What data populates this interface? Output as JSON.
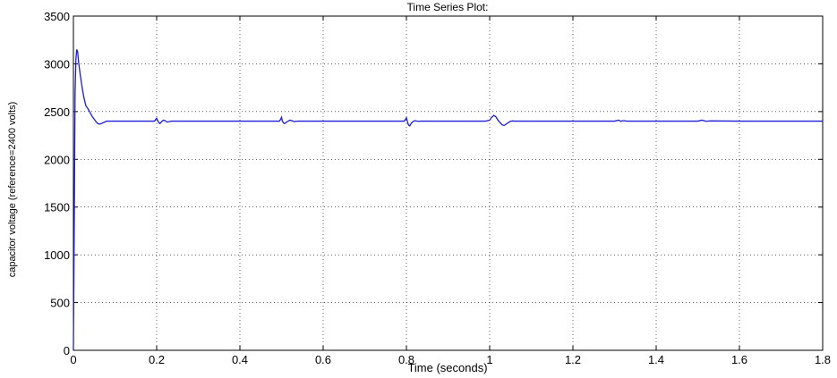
{
  "chart_data": {
    "type": "line",
    "title": "Time Series Plot:",
    "xlabel": "Time (seconds)",
    "ylabel": "capacitor voltage (reference=2400 volts)",
    "xlim": [
      0,
      1.8
    ],
    "ylim": [
      0,
      3500
    ],
    "xticks": [
      0,
      0.2,
      0.4,
      0.6,
      0.8,
      1,
      1.2,
      1.4,
      1.6,
      1.8
    ],
    "xtick_labels": [
      "0",
      "0.2",
      "0.4",
      "0.6",
      "0.8",
      "1",
      "1.2",
      "1.4",
      "1.6",
      "1.8"
    ],
    "yticks": [
      0,
      500,
      1000,
      1500,
      2000,
      2500,
      3000,
      3500
    ],
    "ytick_labels": [
      "0",
      "500",
      "1000",
      "1500",
      "2000",
      "2500",
      "3000",
      "3500"
    ],
    "grid": true,
    "line_color": "#1c1cd6",
    "series": [
      {
        "x": [
          0,
          0.002,
          0.004,
          0.006,
          0.008,
          0.01,
          0.013,
          0.016,
          0.02,
          0.025,
          0.03,
          0.035,
          0.04,
          0.045,
          0.05,
          0.055,
          0.06,
          0.065,
          0.07,
          0.075,
          0.08,
          0.09,
          0.1,
          0.15,
          0.195,
          0.198,
          0.2,
          0.202,
          0.205,
          0.208,
          0.212,
          0.216,
          0.22,
          0.225,
          0.23,
          0.235,
          0.24,
          0.25,
          0.3,
          0.4,
          0.495,
          0.498,
          0.5,
          0.502,
          0.505,
          0.508,
          0.512,
          0.516,
          0.52,
          0.525,
          0.53,
          0.535,
          0.54,
          0.55,
          0.6,
          0.7,
          0.795,
          0.798,
          0.8,
          0.802,
          0.805,
          0.808,
          0.812,
          0.816,
          0.82,
          0.825,
          0.83,
          0.835,
          0.84,
          0.85,
          0.9,
          0.99,
          1.0,
          1.005,
          1.01,
          1.015,
          1.02,
          1.025,
          1.03,
          1.035,
          1.04,
          1.045,
          1.05,
          1.055,
          1.06,
          1.07,
          1.08,
          1.1,
          1.2,
          1.3,
          1.31,
          1.315,
          1.32,
          1.33,
          1.4,
          1.5,
          1.51,
          1.52,
          1.53,
          1.6,
          1.7,
          1.8
        ],
        "y": [
          0,
          1300,
          2700,
          3050,
          3150,
          3130,
          3000,
          2900,
          2780,
          2650,
          2560,
          2530,
          2490,
          2450,
          2420,
          2390,
          2370,
          2370,
          2380,
          2390,
          2400,
          2400,
          2400,
          2400,
          2400,
          2420,
          2430,
          2410,
          2385,
          2375,
          2395,
          2410,
          2405,
          2390,
          2395,
          2400,
          2400,
          2400,
          2400,
          2400,
          2400,
          2420,
          2440,
          2400,
          2380,
          2375,
          2390,
          2400,
          2410,
          2405,
          2395,
          2398,
          2400,
          2400,
          2400,
          2400,
          2400,
          2420,
          2435,
          2400,
          2360,
          2350,
          2380,
          2395,
          2405,
          2400,
          2398,
          2400,
          2400,
          2400,
          2400,
          2400,
          2410,
          2440,
          2460,
          2445,
          2410,
          2385,
          2360,
          2355,
          2370,
          2385,
          2398,
          2402,
          2400,
          2400,
          2400,
          2400,
          2400,
          2400,
          2410,
          2398,
          2405,
          2400,
          2400,
          2400,
          2410,
          2398,
          2402,
          2400,
          2400,
          2400
        ]
      }
    ]
  }
}
